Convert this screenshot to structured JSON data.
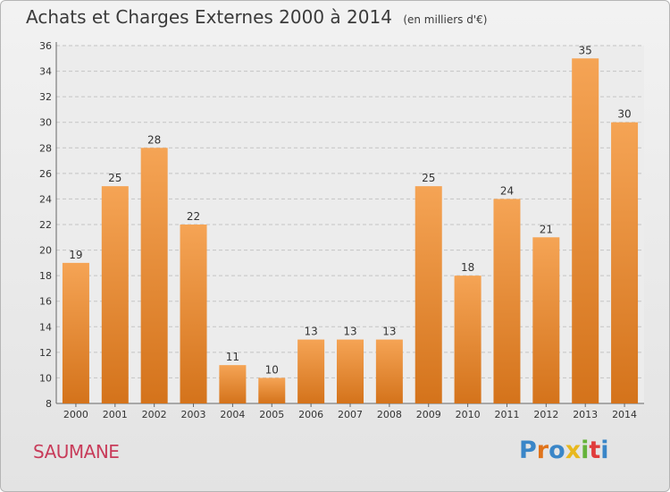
{
  "header": {
    "title": "Achats et Charges Externes 2000 à 2014",
    "subtitle": "(en milliers d'€)"
  },
  "footer": {
    "town": "SAUMANE",
    "brand": "Proxiti"
  },
  "colors": {
    "bar_top": "#f5a455",
    "bar_bottom": "#d4731b",
    "town": "#c83c5a",
    "brand_letters": [
      "#3a86c8",
      "#e0731a",
      "#3a86c8",
      "#e8b81e",
      "#66b33a",
      "#e03c3c",
      "#3a86c8"
    ]
  },
  "chart_data": {
    "type": "bar",
    "categories": [
      "2000",
      "2001",
      "2002",
      "2003",
      "2004",
      "2005",
      "2006",
      "2007",
      "2008",
      "2009",
      "2010",
      "2011",
      "2012",
      "2013",
      "2014"
    ],
    "values": [
      19,
      25,
      28,
      22,
      11,
      10,
      13,
      13,
      13,
      25,
      18,
      24,
      21,
      35,
      30
    ],
    "title": "Achats et Charges Externes 2000 à 2014",
    "subtitle": "(en milliers d'€)",
    "xlabel": "",
    "ylabel": "",
    "ylim": [
      8,
      36
    ],
    "yticks": [
      8,
      10,
      12,
      14,
      16,
      18,
      20,
      22,
      24,
      26,
      28,
      30,
      32,
      34,
      36
    ],
    "grid": true,
    "data_labels": true
  }
}
